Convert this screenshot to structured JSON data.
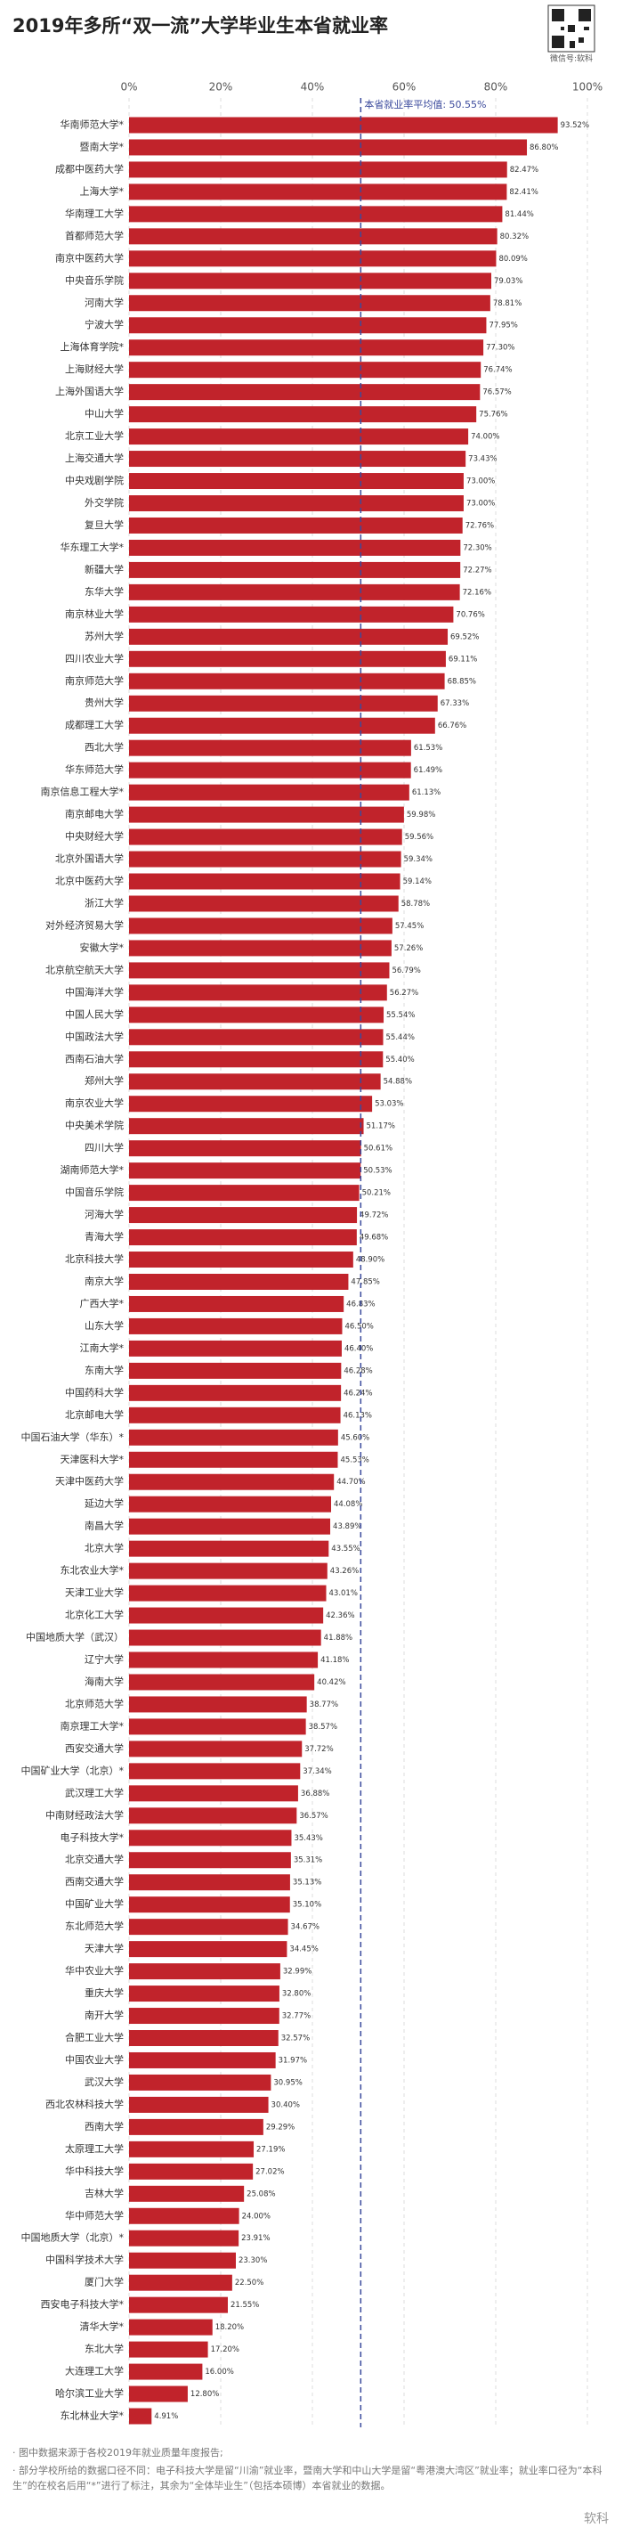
{
  "chart_data": {
    "type": "barh",
    "title": "2019年多所“双一流”大学毕业生本省就业率",
    "wechat": "微信号:软科",
    "categories": [
      "华南师范大学*",
      "暨南大学*",
      "成都中医药大学",
      "上海大学*",
      "华南理工大学",
      "首都师范大学",
      "南京中医药大学",
      "中央音乐学院",
      "河南大学",
      "宁波大学",
      "上海体育学院*",
      "上海财经大学",
      "上海外国语大学",
      "中山大学",
      "北京工业大学",
      "上海交通大学",
      "中央戏剧学院",
      "外交学院",
      "复旦大学",
      "华东理工大学*",
      "新疆大学",
      "东华大学",
      "南京林业大学",
      "苏州大学",
      "四川农业大学",
      "南京师范大学",
      "贵州大学",
      "成都理工大学",
      "西北大学",
      "华东师范大学",
      "南京信息工程大学*",
      "南京邮电大学",
      "中央财经大学",
      "北京外国语大学",
      "北京中医药大学",
      "浙江大学",
      "对外经济贸易大学",
      "安徽大学*",
      "北京航空航天大学",
      "中国海洋大学",
      "中国人民大学",
      "中国政法大学",
      "西南石油大学",
      "郑州大学",
      "南京农业大学",
      "中央美术学院",
      "四川大学",
      "湖南师范大学*",
      "中国音乐学院",
      "河海大学",
      "青海大学",
      "北京科技大学",
      "南京大学",
      "广西大学*",
      "山东大学",
      "江南大学*",
      "东南大学",
      "中国药科大学",
      "北京邮电大学",
      "中国石油大学（华东）*",
      "天津医科大学*",
      "天津中医药大学",
      "延边大学",
      "南昌大学",
      "北京大学",
      "东北农业大学*",
      "天津工业大学",
      "北京化工大学",
      "中国地质大学（武汉）",
      "辽宁大学",
      "海南大学",
      "北京师范大学",
      "南京理工大学*",
      "西安交通大学",
      "中国矿业大学（北京）*",
      "武汉理工大学",
      "中南财经政法大学",
      "电子科技大学*",
      "北京交通大学",
      "西南交通大学",
      "中国矿业大学",
      "东北师范大学",
      "天津大学",
      "华中农业大学",
      "重庆大学",
      "南开大学",
      "合肥工业大学",
      "中国农业大学",
      "武汉大学",
      "西北农林科技大学",
      "西南大学",
      "太原理工大学",
      "华中科技大学",
      "吉林大学",
      "华中师范大学",
      "中国地质大学（北京）*",
      "中国科学技术大学",
      "厦门大学",
      "西安电子科技大学*",
      "清华大学*",
      "东北大学",
      "大连理工大学",
      "哈尔滨工业大学",
      "东北林业大学*"
    ],
    "values": [
      93.52,
      86.8,
      82.47,
      82.41,
      81.44,
      80.32,
      80.09,
      79.03,
      78.81,
      77.95,
      77.3,
      76.74,
      76.57,
      75.76,
      74.0,
      73.43,
      73.0,
      73.0,
      72.76,
      72.3,
      72.27,
      72.16,
      70.76,
      69.52,
      69.11,
      68.85,
      67.33,
      66.76,
      61.53,
      61.49,
      61.13,
      59.98,
      59.56,
      59.34,
      59.14,
      58.78,
      57.45,
      57.26,
      56.79,
      56.27,
      55.54,
      55.44,
      55.4,
      54.88,
      53.03,
      51.17,
      50.61,
      50.53,
      50.21,
      49.72,
      49.68,
      48.9,
      47.85,
      46.83,
      46.5,
      46.4,
      46.28,
      46.24,
      46.13,
      45.6,
      45.53,
      44.7,
      44.08,
      43.89,
      43.55,
      43.26,
      43.01,
      42.36,
      41.88,
      41.18,
      40.42,
      38.77,
      38.57,
      37.72,
      37.34,
      36.88,
      36.57,
      35.43,
      35.31,
      35.13,
      35.1,
      34.67,
      34.45,
      32.99,
      32.8,
      32.77,
      32.57,
      31.97,
      30.95,
      30.4,
      29.29,
      27.19,
      27.02,
      25.08,
      24.0,
      23.91,
      23.3,
      22.5,
      21.55,
      18.2,
      17.2,
      16.0,
      12.8,
      4.91
    ],
    "value_labels": [
      "93.52%",
      "86.80%",
      "82.47%",
      "82.41%",
      "81.44%",
      "80.32%",
      "80.09%",
      "79.03%",
      "78.81%",
      "77.95%",
      "77.30%",
      "76.74%",
      "76.57%",
      "75.76%",
      "74.00%",
      "73.43%",
      "73.00%",
      "73.00%",
      "72.76%",
      "72.30%",
      "72.27%",
      "72.16%",
      "70.76%",
      "69.52%",
      "69.11%",
      "68.85%",
      "67.33%",
      "66.76%",
      "61.53%",
      "61.49%",
      "61.13%",
      "59.98%",
      "59.56%",
      "59.34%",
      "59.14%",
      "58.78%",
      "57.45%",
      "57.26%",
      "56.79%",
      "56.27%",
      "55.54%",
      "55.44%",
      "55.40%",
      "54.88%",
      "53.03%",
      "51.17%",
      "50.61%",
      "50.53%",
      "50.21%",
      "49.72%",
      "49.68%",
      "48.90%",
      "47.85%",
      "46.83%",
      "46.50%",
      "46.40%",
      "46.28%",
      "46.24%",
      "46.13%",
      "45.60%",
      "45.53%",
      "44.70%",
      "44.08%",
      "43.89%",
      "43.55%",
      "43.26%",
      "43.01%",
      "42.36%",
      "41.88%",
      "41.18%",
      "40.42%",
      "38.77%",
      "38.57%",
      "37.72%",
      "37.34%",
      "36.88%",
      "36.57%",
      "35.43%",
      "35.31%",
      "35.13%",
      "35.10%",
      "34.67%",
      "34.45%",
      "32.99%",
      "32.80%",
      "32.77%",
      "32.57%",
      "31.97%",
      "30.95%",
      "30.40%",
      "29.29%",
      "27.19%",
      "27.02%",
      "25.08%",
      "24.00%",
      "23.91%",
      "23.30%",
      "22.50%",
      "21.55%",
      "18.20%",
      "17.20%",
      "16.00%",
      "12.80%",
      "4.91%"
    ],
    "color": "#c1232b",
    "average_color": "#3b4a9c",
    "xlim": [
      0,
      100
    ],
    "xticks": [
      {
        "value": 0,
        "label": "0%"
      },
      {
        "value": 20,
        "label": "20%"
      },
      {
        "value": 40,
        "label": "40%"
      },
      {
        "value": 60,
        "label": "60%"
      },
      {
        "value": 80,
        "label": "80%"
      },
      {
        "value": 100,
        "label": "100%"
      }
    ],
    "grid": true,
    "average": {
      "value": 50.55,
      "label": "本省就业率平均值: 50.55%"
    },
    "notes": [
      "· 图中数据来源于各校2019年就业质量年度报告;",
      "· 部分学校所给的数据口径不同：电子科技大学是留“川渝”就业率，暨南大学和中山大学是留“粤港澳大湾区”就业率；就业率口径为“本科生”的在校名后用“*”进行了标注，其余为“全体毕业生”（包括本硕博）本省就业的数据。"
    ],
    "watermark": "软科"
  }
}
